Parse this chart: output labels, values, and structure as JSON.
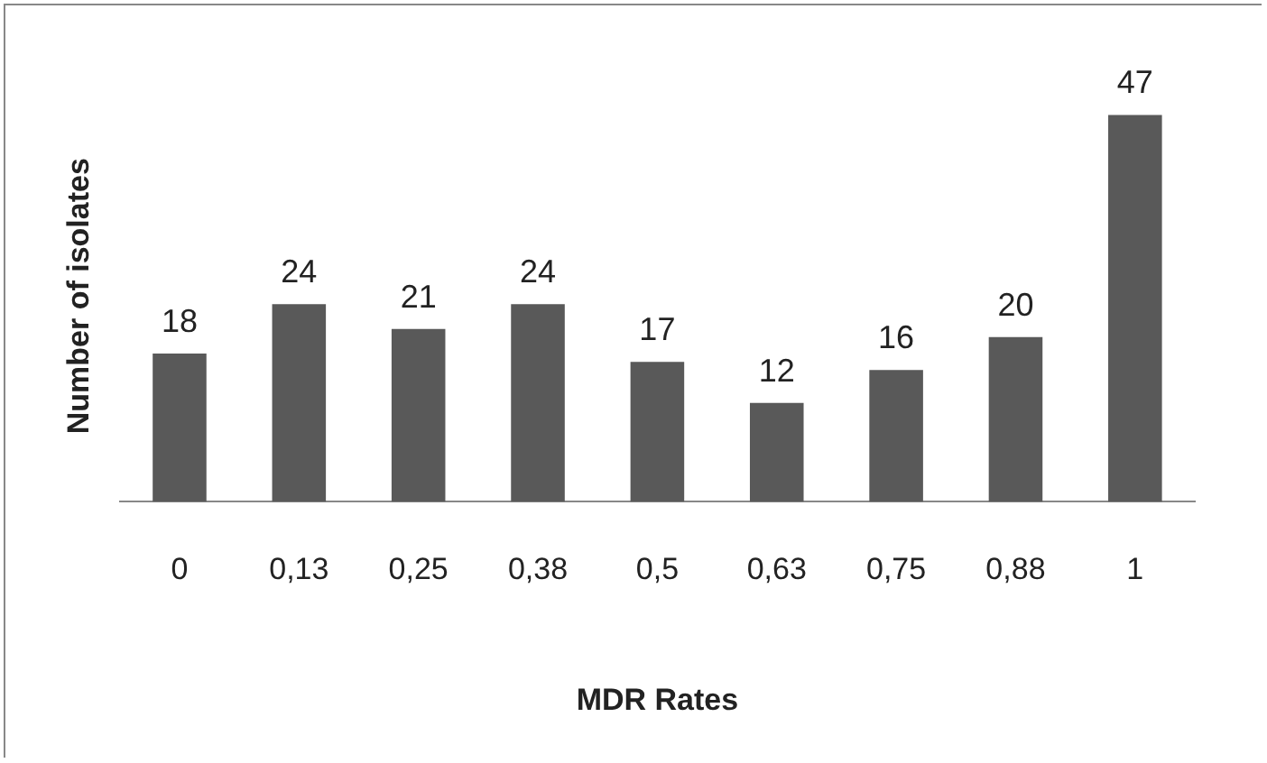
{
  "chart_data": {
    "type": "bar",
    "xlabel": "MDR Rates",
    "ylabel": "Number of isolates",
    "categories": [
      "0",
      "0,13",
      "0,25",
      "0,38",
      "0,5",
      "0,63",
      "0,75",
      "0,88",
      "1"
    ],
    "values": [
      18,
      24,
      21,
      24,
      17,
      12,
      16,
      20,
      47
    ],
    "color": "#595959",
    "data_labels": true,
    "tick_labels": "x",
    "grid": false,
    "legend": false
  }
}
